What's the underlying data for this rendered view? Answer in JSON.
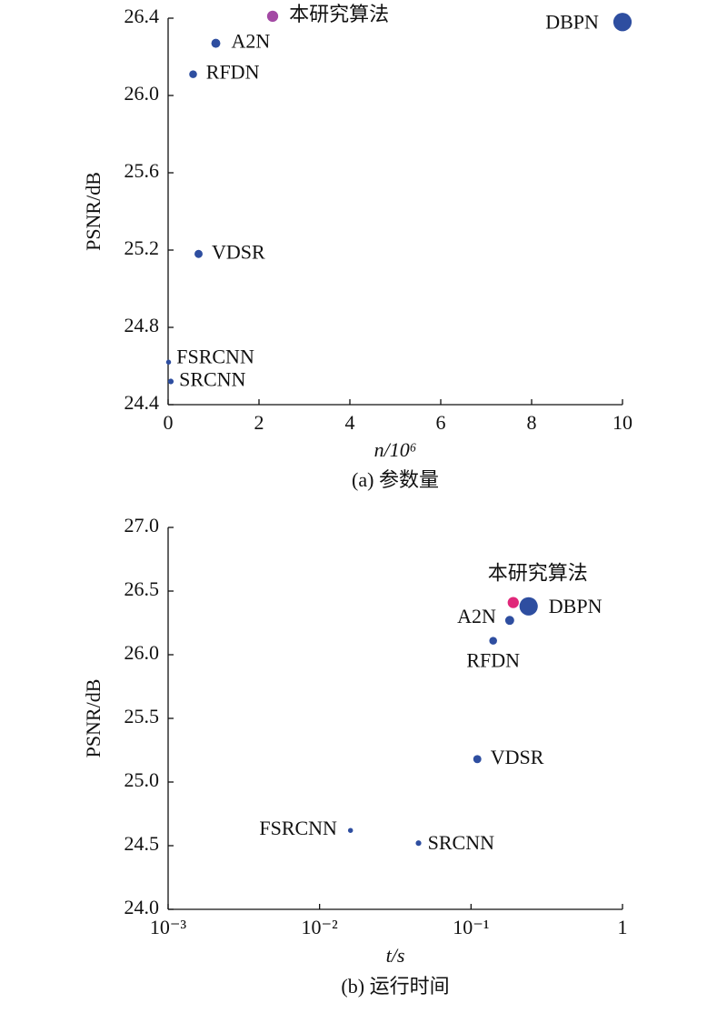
{
  "chart_data": [
    {
      "type": "scatter",
      "xlabel": "n/10⁶",
      "ylabel": "PSNR/dB",
      "caption": "(a) 参数量",
      "xlim": [
        0,
        10
      ],
      "xticks": [
        0,
        2,
        4,
        6,
        8,
        10
      ],
      "ylim": [
        24.4,
        26.4
      ],
      "yticks": [
        24.4,
        24.8,
        25.2,
        25.6,
        {
          "value": 26,
          "label": "26.0"
        },
        26.4
      ],
      "series": [
        {
          "name": "本研究算法",
          "color": "#a349a4",
          "x": [
            2.3
          ],
          "values": [
            26.41
          ]
        },
        {
          "name": "A2N",
          "color": "#2e4ea0",
          "x": [
            1.05
          ],
          "values": [
            26.27
          ]
        },
        {
          "name": "RFDN",
          "color": "#2e4ea0",
          "x": [
            0.55
          ],
          "values": [
            26.11
          ]
        },
        {
          "name": "DBPN",
          "color": "#2e4ea0",
          "x": [
            10
          ],
          "values": [
            26.38
          ]
        },
        {
          "name": "VDSR",
          "color": "#2e4ea0",
          "x": [
            0.67
          ],
          "values": [
            25.18
          ]
        },
        {
          "name": "FSRCNN",
          "color": "#2e4ea0",
          "x": [
            0.01
          ],
          "values": [
            24.62
          ]
        },
        {
          "name": "SRCNN",
          "color": "#2e4ea0",
          "x": [
            0.06
          ],
          "values": [
            24.52
          ]
        }
      ]
    },
    {
      "type": "scatter",
      "xlabel": "t/s",
      "ylabel": "PSNR/dB",
      "caption": "(b) 运行时间",
      "xscale": "log",
      "xlim": [
        0.001,
        1
      ],
      "xticks": [
        {
          "value": 0.001,
          "label": "10⁻³"
        },
        {
          "value": 0.01,
          "label": "10⁻²"
        },
        {
          "value": 0.1,
          "label": "10⁻¹"
        },
        1
      ],
      "ylim": [
        24,
        27
      ],
      "yticks": [
        {
          "value": 24,
          "label": "24.0"
        },
        24.5,
        {
          "value": 25,
          "label": "25.0"
        },
        25.5,
        {
          "value": 26,
          "label": "26.0"
        },
        26.5,
        {
          "value": 27,
          "label": "27.0"
        }
      ],
      "series": [
        {
          "name": "本研究算法",
          "color": "#e0287a",
          "x": [
            0.19
          ],
          "values": [
            26.41
          ]
        },
        {
          "name": "A2N",
          "color": "#2e4ea0",
          "x": [
            0.18
          ],
          "values": [
            26.27
          ]
        },
        {
          "name": "RFDN",
          "color": "#2e4ea0",
          "x": [
            0.14
          ],
          "values": [
            26.11
          ]
        },
        {
          "name": "DBPN",
          "color": "#2e4ea0",
          "x": [
            0.24
          ],
          "values": [
            26.38
          ]
        },
        {
          "name": "VDSR",
          "color": "#2e4ea0",
          "x": [
            0.11
          ],
          "values": [
            25.18
          ]
        },
        {
          "name": "FSRCNN",
          "color": "#2e4ea0",
          "x": [
            0.016
          ],
          "values": [
            24.62
          ]
        },
        {
          "name": "SRCNN",
          "color": "#2e4ea0",
          "x": [
            0.045
          ],
          "values": [
            24.52
          ]
        }
      ]
    }
  ]
}
